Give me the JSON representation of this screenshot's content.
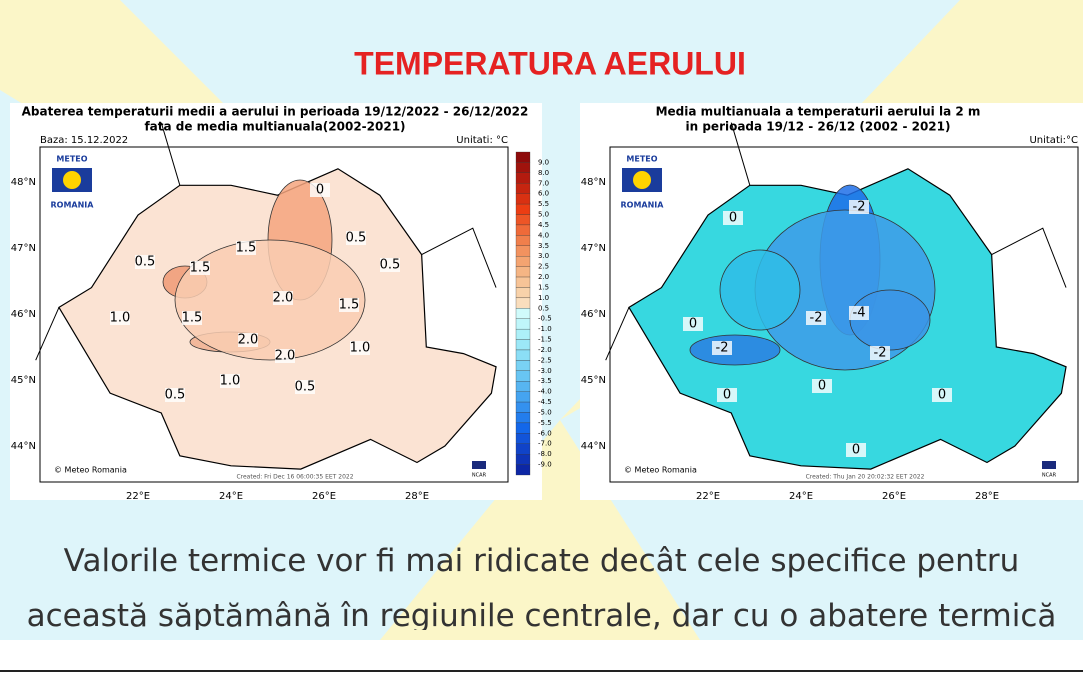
{
  "title": "TEMPERATURA AERULUI",
  "maps": [
    {
      "title_lines": [
        "Abaterea temperaturii medii a aerului in perioada 19/12/2022 - 26/12/2022",
        "fata de media multianuala(2002-2021)"
      ],
      "base": "Baza: 15.12.2022",
      "units": "Unitati: °C",
      "logo": [
        "METEO",
        "ROMANIA"
      ],
      "lat_labels": [
        "48°N",
        "47°N",
        "46°N",
        "45°N",
        "44°N"
      ],
      "lon_labels": [
        "22°E",
        "24°E",
        "26°E",
        "28°E"
      ],
      "colorbar": [
        "9.0",
        "8.0",
        "7.0",
        "6.0",
        "5.5",
        "5.0",
        "4.5",
        "4.0",
        "3.5",
        "3.0",
        "2.5",
        "2.0",
        "1.5",
        "1.0",
        "0.5",
        "-0.5",
        "-1.0",
        "-1.5",
        "-2.0",
        "-2.5",
        "-3.0",
        "-3.5",
        "-4.0",
        "-4.5",
        "-5.0",
        "-5.5",
        "-6.0",
        "-7.0",
        "-8.0",
        "-9.0"
      ],
      "contour_labels": [
        "0",
        "0.5",
        "1.5",
        "1.5",
        "0.5",
        "0.5",
        "1.0",
        "1.5",
        "2.0",
        "1.5",
        "2.0",
        "2.0",
        "1.0",
        "1.0",
        "0.5",
        "0.5"
      ],
      "credit": "© Meteo Romania",
      "created": "Created: Fri Dec 16 06:00:35 EET 2022",
      "ncar": "NCAR"
    },
    {
      "title_lines": [
        "Media multianuala a temperaturii aerului la 2 m",
        "in perioada 19/12 - 26/12 (2002 - 2021)"
      ],
      "units": "Unitati:°C",
      "logo": [
        "METEO",
        "ROMANIA"
      ],
      "lat_labels": [
        "48°N",
        "47°N",
        "46°N",
        "45°N",
        "44°N"
      ],
      "lon_labels": [
        "22°E",
        "24°E",
        "26°E",
        "28°E"
      ],
      "contour_labels": [
        "0",
        "-2",
        "0",
        "-4",
        "-2",
        "-2",
        "-2",
        "0",
        "0",
        "0",
        "0"
      ],
      "credit": "© Meteo Romania",
      "created": "Created: Thu Jan 20 20:02:32 EET 2022",
      "ncar": "NCAR"
    }
  ],
  "body": [
    "Valorile termice vor fi mai ridicate decât cele specifice pentru",
    "această săptămână în regiunile centrale, dar cu o abatere termică"
  ]
}
